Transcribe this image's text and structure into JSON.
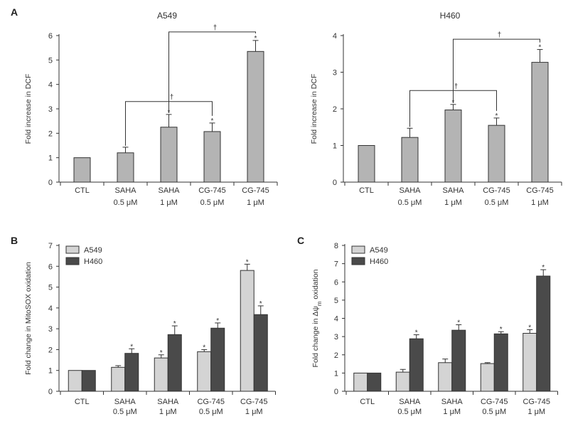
{
  "figure": {
    "colors": {
      "single": "#b4b4b4",
      "a549": "#d4d4d4",
      "h460": "#4a4a4a",
      "axis": "#333333",
      "text": "#333333"
    }
  },
  "chart_data": [
    {
      "id": "A-A549",
      "panel_letter": "A",
      "type": "bar",
      "title": "A549",
      "ylabel": "Fold increase in DCF",
      "ylim": [
        0,
        6
      ],
      "yticks": [
        0,
        1,
        2,
        3,
        4,
        5,
        6
      ],
      "categories": [
        {
          "line1": "CTL",
          "line2": ""
        },
        {
          "line1": "SAHA",
          "line2": "0.5 μM"
        },
        {
          "line1": "SAHA",
          "line2": "1 μM"
        },
        {
          "line1": "CG-745",
          "line2": "0.5 μM"
        },
        {
          "line1": "CG-745",
          "line2": "1 μM"
        }
      ],
      "series": [
        {
          "name": "",
          "color_key": "single",
          "values": [
            1.0,
            1.2,
            2.25,
            2.07,
            5.35
          ],
          "errors": [
            0,
            0.23,
            0.52,
            0.35,
            0.45
          ],
          "stars": [
            "",
            "",
            "*",
            "*",
            "*"
          ]
        }
      ],
      "brackets": [
        {
          "from": 1,
          "to": 3,
          "height": 3.3,
          "label": "†"
        },
        {
          "from": 2,
          "to": 4,
          "height": 6.15,
          "label": "†"
        }
      ]
    },
    {
      "id": "A-H460",
      "panel_letter": "",
      "type": "bar",
      "title": "H460",
      "ylabel": "Fold increase in DCF",
      "ylim": [
        0,
        4
      ],
      "yticks": [
        0,
        1,
        2,
        3,
        4
      ],
      "categories": [
        {
          "line1": "CTL",
          "line2": ""
        },
        {
          "line1": "SAHA",
          "line2": "0.5 μM"
        },
        {
          "line1": "SAHA",
          "line2": "1 μM"
        },
        {
          "line1": "CG-745",
          "line2": "0.5 μM"
        },
        {
          "line1": "CG-745",
          "line2": "1 μM"
        }
      ],
      "series": [
        {
          "name": "",
          "color_key": "single",
          "values": [
            1.0,
            1.22,
            1.97,
            1.55,
            3.27
          ],
          "errors": [
            0,
            0.25,
            0.15,
            0.2,
            0.35
          ],
          "stars": [
            "",
            "",
            "*",
            "*",
            "*"
          ]
        }
      ],
      "brackets": [
        {
          "from": 1,
          "to": 3,
          "height": 2.5,
          "label": "†"
        },
        {
          "from": 2,
          "to": 4,
          "height": 3.9,
          "label": "†"
        }
      ]
    },
    {
      "id": "B",
      "panel_letter": "B",
      "type": "bar",
      "title": "",
      "ylabel": "Fold change in MitoSOX oxidation",
      "ylim": [
        0,
        7
      ],
      "yticks": [
        0,
        1,
        2,
        3,
        4,
        5,
        6,
        7
      ],
      "categories": [
        {
          "line1": "CTL",
          "line2": ""
        },
        {
          "line1": "SAHA",
          "line2": "0.5 μM"
        },
        {
          "line1": "SAHA",
          "line2": "1 μM"
        },
        {
          "line1": "CG-745",
          "line2": "0.5 μM"
        },
        {
          "line1": "CG-745",
          "line2": "1 μM"
        }
      ],
      "legend": [
        "A549",
        "H460"
      ],
      "series": [
        {
          "name": "A549",
          "color_key": "a549",
          "values": [
            1.0,
            1.15,
            1.6,
            1.9,
            5.8
          ],
          "errors": [
            0,
            0.08,
            0.15,
            0.1,
            0.3
          ],
          "stars": [
            "",
            "",
            "*",
            "*",
            "*"
          ]
        },
        {
          "name": "H460",
          "color_key": "h460",
          "values": [
            1.0,
            1.82,
            2.72,
            3.03,
            3.68
          ],
          "errors": [
            0,
            0.22,
            0.42,
            0.25,
            0.42
          ],
          "stars": [
            "",
            "*",
            "*",
            "*",
            "*"
          ]
        }
      ],
      "brackets": []
    },
    {
      "id": "C",
      "panel_letter": "C",
      "type": "bar",
      "title": "",
      "ylabel_main": "Fold change in Δψ",
      "ylabel_sub": "m",
      "ylabel_tail": " oxidation",
      "ylim": [
        0,
        8
      ],
      "yticks": [
        0,
        1,
        2,
        3,
        4,
        5,
        6,
        7,
        8
      ],
      "categories": [
        {
          "line1": "CTL",
          "line2": ""
        },
        {
          "line1": "SAHA",
          "line2": "0.5 μM"
        },
        {
          "line1": "SAHA",
          "line2": "1 μM"
        },
        {
          "line1": "CG-745",
          "line2": "0.5 μM"
        },
        {
          "line1": "CG-745",
          "line2": "1 μM"
        }
      ],
      "legend": [
        "A549",
        "H460"
      ],
      "series": [
        {
          "name": "A549",
          "color_key": "a549",
          "values": [
            1.0,
            1.05,
            1.57,
            1.52,
            3.18
          ],
          "errors": [
            0,
            0.15,
            0.2,
            0.05,
            0.2
          ],
          "stars": [
            "",
            "",
            "",
            "",
            "*"
          ]
        },
        {
          "name": "H460",
          "color_key": "h460",
          "values": [
            1.0,
            2.88,
            3.35,
            3.15,
            6.32
          ],
          "errors": [
            0,
            0.22,
            0.3,
            0.12,
            0.35
          ],
          "stars": [
            "",
            "*",
            "*",
            "*",
            "*"
          ]
        }
      ],
      "brackets": []
    }
  ]
}
